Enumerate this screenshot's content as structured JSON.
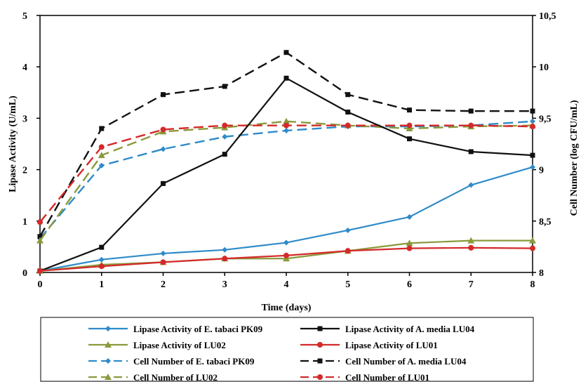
{
  "chart_data": {
    "type": "line",
    "title": "",
    "xlabel": "Time (days)",
    "ylabel_left": "Lipase Activity (U/mL)",
    "ylabel_right": "Cell Number (log CFU/mL)",
    "x": [
      0,
      1,
      2,
      3,
      4,
      5,
      6,
      7,
      8
    ],
    "x_ticks": [
      "0",
      "1",
      "2",
      "3",
      "4",
      "5",
      "6",
      "7",
      "8"
    ],
    "ylim_left": [
      0,
      5
    ],
    "y_ticks_left": [
      "0",
      "1",
      "2",
      "3",
      "4",
      "5"
    ],
    "ylim_right": [
      8,
      10.5
    ],
    "y_ticks_right": [
      "8",
      "8,5",
      "9",
      "9,5",
      "10",
      "10,5"
    ],
    "grid": false,
    "legend_position": "bottom",
    "series": [
      {
        "name": "Lipase Activity of E. tabaci PK09",
        "axis": "left",
        "dashed": false,
        "marker": "diamond",
        "color": "#2E8BC9",
        "values": [
          0.03,
          0.25,
          0.37,
          0.44,
          0.58,
          0.82,
          1.08,
          1.7,
          2.05
        ]
      },
      {
        "name": "Lipase Activity of A. media LU04",
        "axis": "left",
        "dashed": false,
        "marker": "square",
        "color": "#111111",
        "values": [
          0.03,
          0.49,
          1.73,
          2.3,
          3.78,
          3.12,
          2.6,
          2.35,
          2.28
        ]
      },
      {
        "name": "Lipase Activity of LU02",
        "axis": "left",
        "dashed": false,
        "marker": "triangle",
        "color": "#8A9A3B",
        "values": [
          0.03,
          0.15,
          0.2,
          0.27,
          0.27,
          0.42,
          0.57,
          0.62,
          0.62
        ]
      },
      {
        "name": "Lipase Activity of LU01",
        "axis": "left",
        "dashed": false,
        "marker": "circle",
        "color": "#D42A2A",
        "values": [
          0.03,
          0.12,
          0.2,
          0.27,
          0.33,
          0.42,
          0.47,
          0.48,
          0.47
        ]
      },
      {
        "name": "Cell Number of E. tabaci PK09",
        "axis": "right",
        "dashed": true,
        "marker": "diamond",
        "color": "#2E8BC9",
        "values": [
          8.33,
          9.04,
          9.2,
          9.32,
          9.38,
          9.42,
          9.42,
          9.43,
          9.47
        ]
      },
      {
        "name": "Cell Number of A. media LU04",
        "axis": "right",
        "dashed": true,
        "marker": "square",
        "color": "#111111",
        "values": [
          8.35,
          9.4,
          9.73,
          9.81,
          10.14,
          9.73,
          9.58,
          9.57,
          9.57
        ]
      },
      {
        "name": "Cell Number of LU02",
        "axis": "right",
        "dashed": true,
        "marker": "triangle",
        "color": "#8A9A3B",
        "values": [
          8.31,
          9.14,
          9.37,
          9.41,
          9.47,
          9.43,
          9.4,
          9.42,
          9.43
        ]
      },
      {
        "name": "Cell Number of LU01",
        "axis": "right",
        "dashed": true,
        "marker": "circle",
        "color": "#D42A2A",
        "values": [
          8.49,
          9.22,
          9.39,
          9.43,
          9.43,
          9.43,
          9.43,
          9.43,
          9.42
        ]
      }
    ]
  }
}
